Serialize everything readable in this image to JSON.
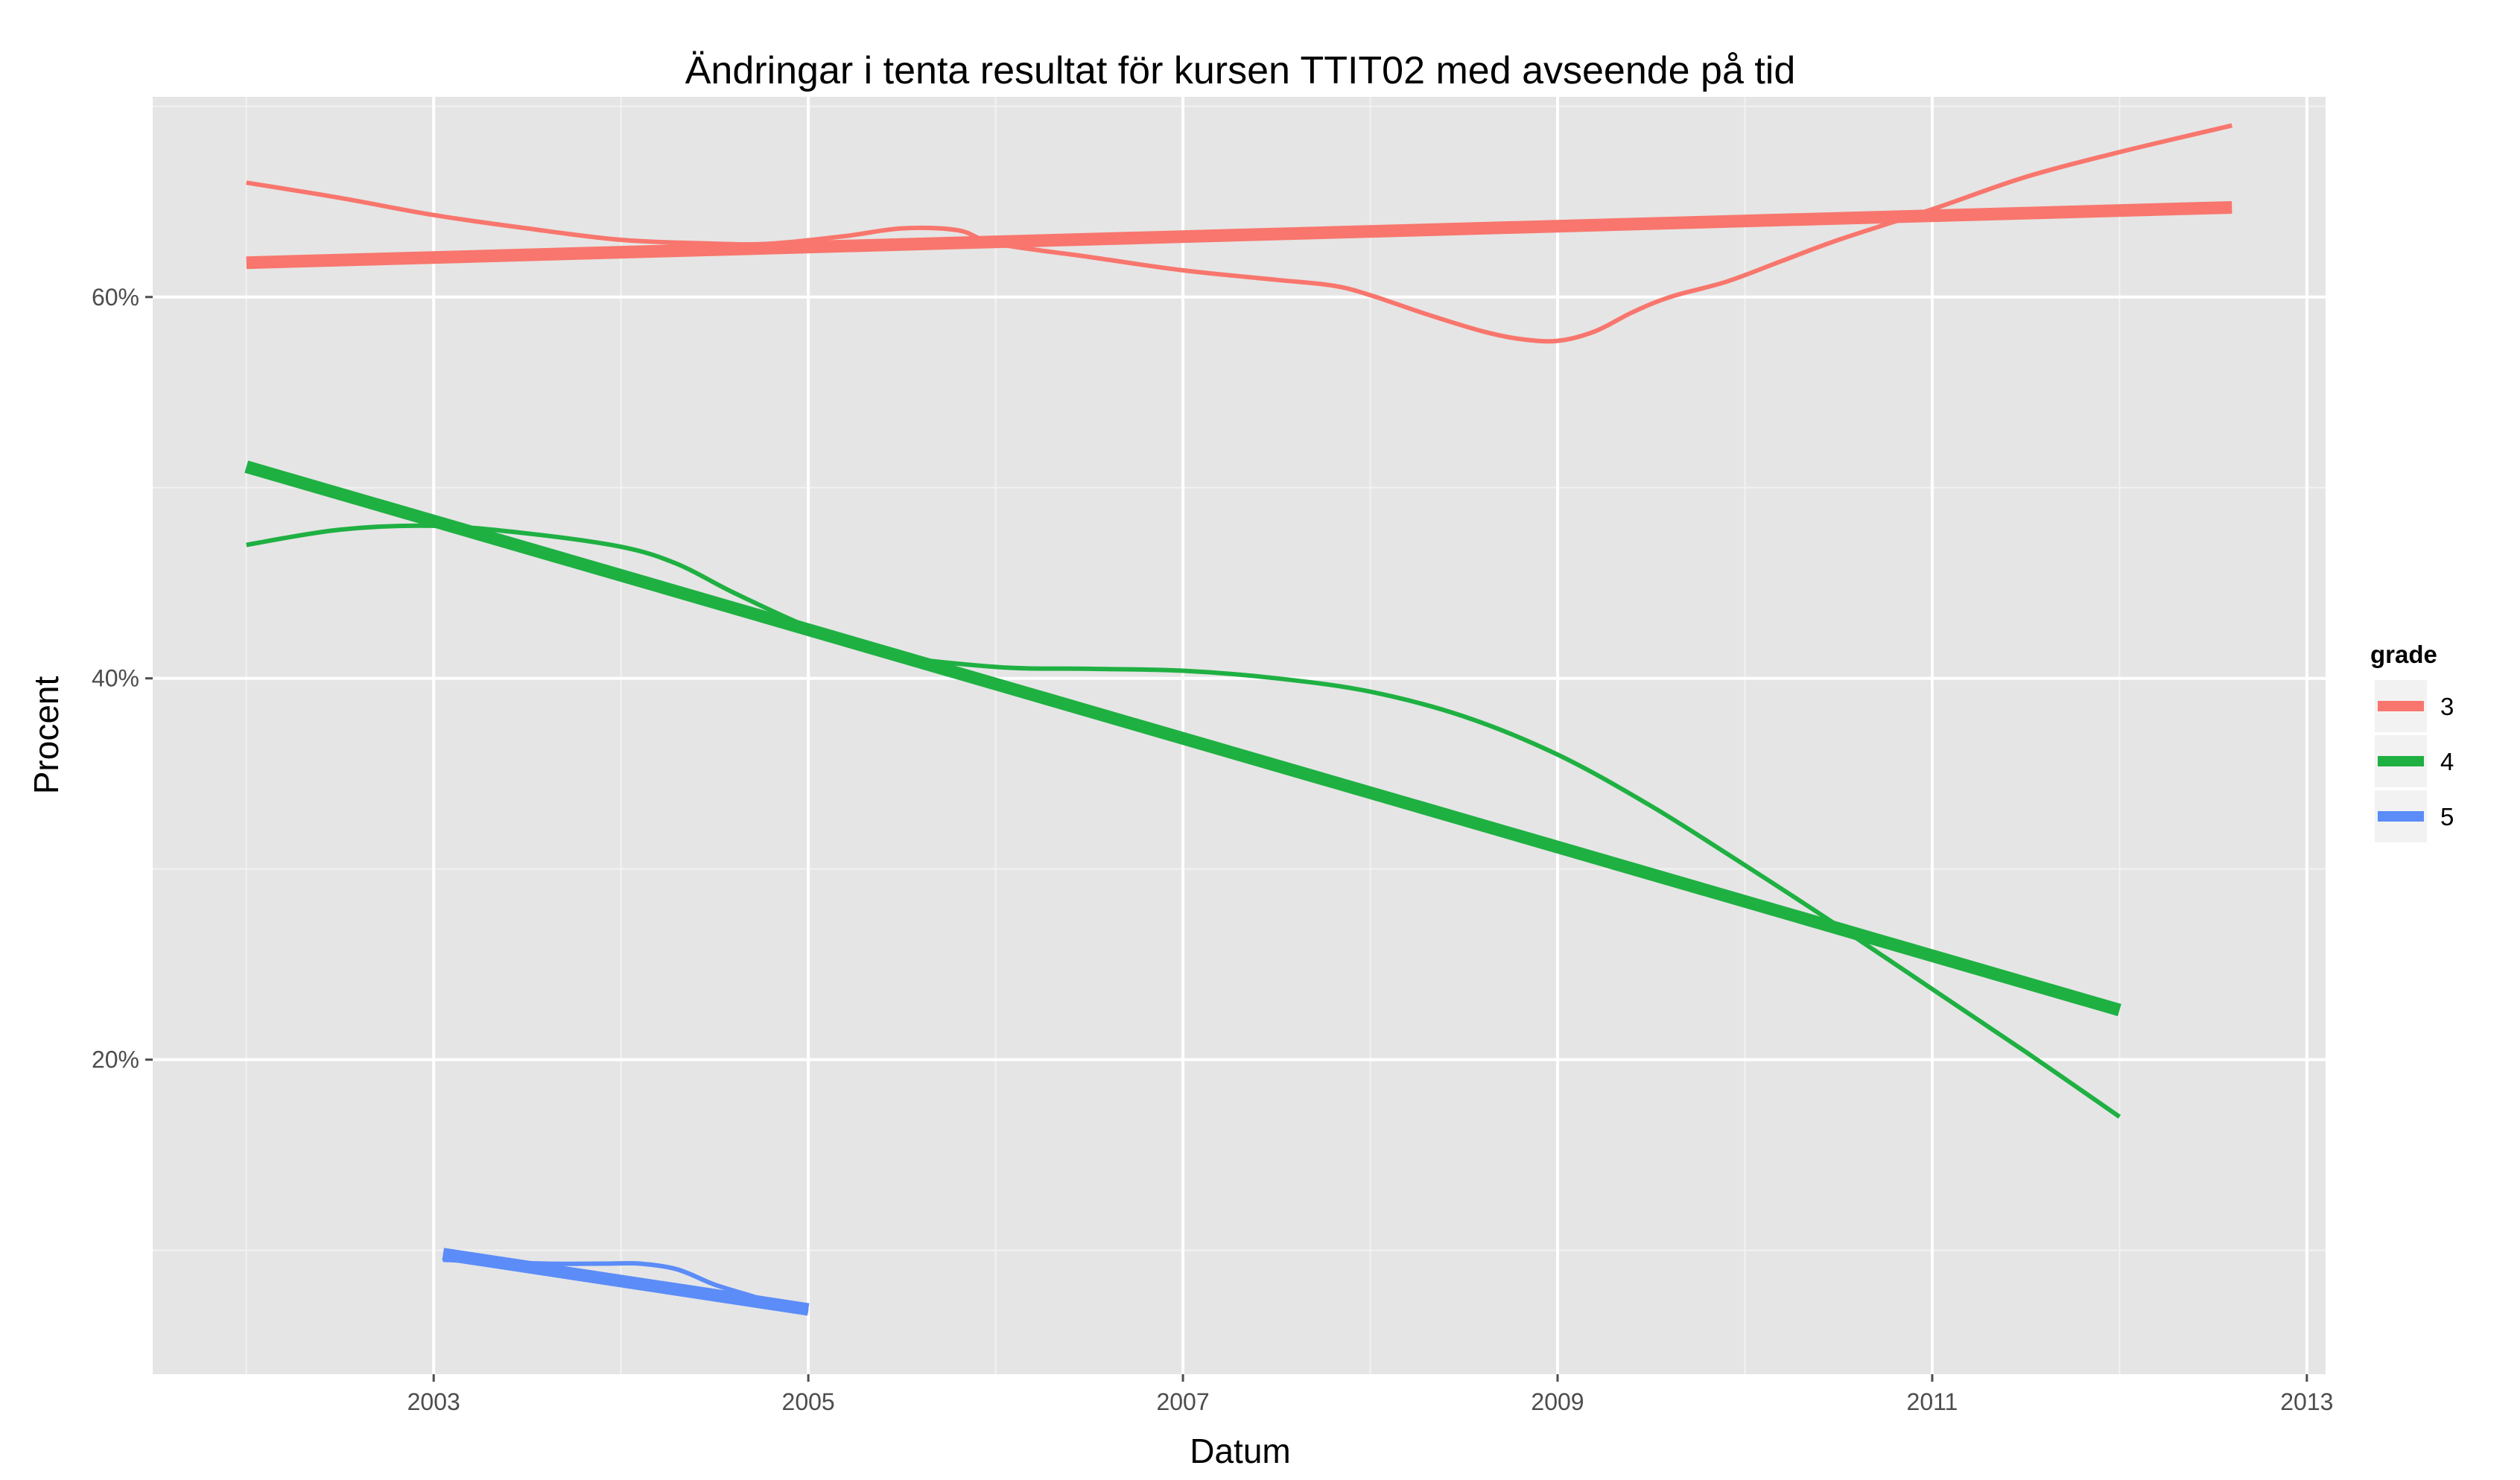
{
  "chart_data": {
    "type": "line",
    "title": "Ändringar i tenta resultat för kursen TTIT02 med avseende på tid",
    "xlabel": "Datum",
    "ylabel": "Procent",
    "xlim": [
      2001.5,
      2013.1
    ],
    "ylim": [
      3.5,
      70.5
    ],
    "x_ticks": [
      {
        "value": 2003,
        "label": "2003"
      },
      {
        "value": 2005,
        "label": "2005"
      },
      {
        "value": 2007,
        "label": "2007"
      },
      {
        "value": 2009,
        "label": "2009"
      },
      {
        "value": 2011,
        "label": "2011"
      },
      {
        "value": 2013,
        "label": "2013"
      }
    ],
    "y_ticks": [
      {
        "value": 20,
        "label": "20%"
      },
      {
        "value": 40,
        "label": "40%"
      },
      {
        "value": 60,
        "label": "60%"
      }
    ],
    "grid": true,
    "background": "#e5e5e5",
    "legend": {
      "title": "grade",
      "position": "right",
      "entries": [
        {
          "label": "3",
          "color": "#f8766d"
        },
        {
          "label": "4",
          "color": "#1fb042"
        },
        {
          "label": "5",
          "color": "#5b8cf8"
        }
      ]
    },
    "series": [
      {
        "name": "3",
        "color": "#f8766d",
        "trend": [
          [
            2002.0,
            61.8
          ],
          [
            2012.6,
            64.7
          ]
        ],
        "smooth": [
          [
            2002.0,
            66.0
          ],
          [
            2002.5,
            65.2
          ],
          [
            2003.0,
            64.3
          ],
          [
            2003.5,
            63.6
          ],
          [
            2004.0,
            63.0
          ],
          [
            2004.5,
            62.8
          ],
          [
            2004.8,
            62.8
          ],
          [
            2005.2,
            63.2
          ],
          [
            2005.5,
            63.6
          ],
          [
            2005.8,
            63.5
          ],
          [
            2006.0,
            62.8
          ],
          [
            2006.5,
            62.1
          ],
          [
            2007.0,
            61.4
          ],
          [
            2007.5,
            60.9
          ],
          [
            2007.8,
            60.6
          ],
          [
            2008.0,
            60.1
          ],
          [
            2008.3,
            59.1
          ],
          [
            2008.6,
            58.2
          ],
          [
            2008.8,
            57.8
          ],
          [
            2009.0,
            57.7
          ],
          [
            2009.2,
            58.2
          ],
          [
            2009.4,
            59.2
          ],
          [
            2009.6,
            60.0
          ],
          [
            2009.9,
            60.8
          ],
          [
            2010.2,
            61.9
          ],
          [
            2010.5,
            63.0
          ],
          [
            2011.0,
            64.6
          ],
          [
            2011.5,
            66.3
          ],
          [
            2012.0,
            67.6
          ],
          [
            2012.6,
            69.0
          ]
        ]
      },
      {
        "name": "4",
        "color": "#1fb042",
        "trend": [
          [
            2002.0,
            51.1
          ],
          [
            2012.0,
            22.6
          ]
        ],
        "smooth": [
          [
            2002.0,
            47.0
          ],
          [
            2002.5,
            47.8
          ],
          [
            2003.0,
            48.0
          ],
          [
            2003.5,
            47.6
          ],
          [
            2004.0,
            46.9
          ],
          [
            2004.3,
            46.0
          ],
          [
            2004.6,
            44.5
          ],
          [
            2005.0,
            42.7
          ],
          [
            2005.4,
            41.3
          ],
          [
            2006.0,
            40.6
          ],
          [
            2006.5,
            40.5
          ],
          [
            2007.0,
            40.4
          ],
          [
            2007.5,
            40.0
          ],
          [
            2008.0,
            39.3
          ],
          [
            2008.5,
            38.0
          ],
          [
            2009.0,
            36.0
          ],
          [
            2009.5,
            33.3
          ],
          [
            2010.0,
            30.2
          ],
          [
            2010.5,
            27.0
          ],
          [
            2011.0,
            23.7
          ],
          [
            2011.5,
            20.4
          ],
          [
            2012.0,
            17.0
          ]
        ]
      },
      {
        "name": "5",
        "color": "#5b8cf8",
        "trend": [
          [
            2003.05,
            9.8
          ],
          [
            2005.0,
            6.9
          ]
        ],
        "smooth": [
          [
            2003.05,
            9.5
          ],
          [
            2003.3,
            9.4
          ],
          [
            2003.6,
            9.3
          ],
          [
            2003.9,
            9.3
          ],
          [
            2004.1,
            9.3
          ],
          [
            2004.3,
            9.0
          ],
          [
            2004.5,
            8.2
          ],
          [
            2004.7,
            7.6
          ],
          [
            2004.85,
            7.1
          ],
          [
            2005.0,
            6.8
          ]
        ]
      }
    ]
  }
}
